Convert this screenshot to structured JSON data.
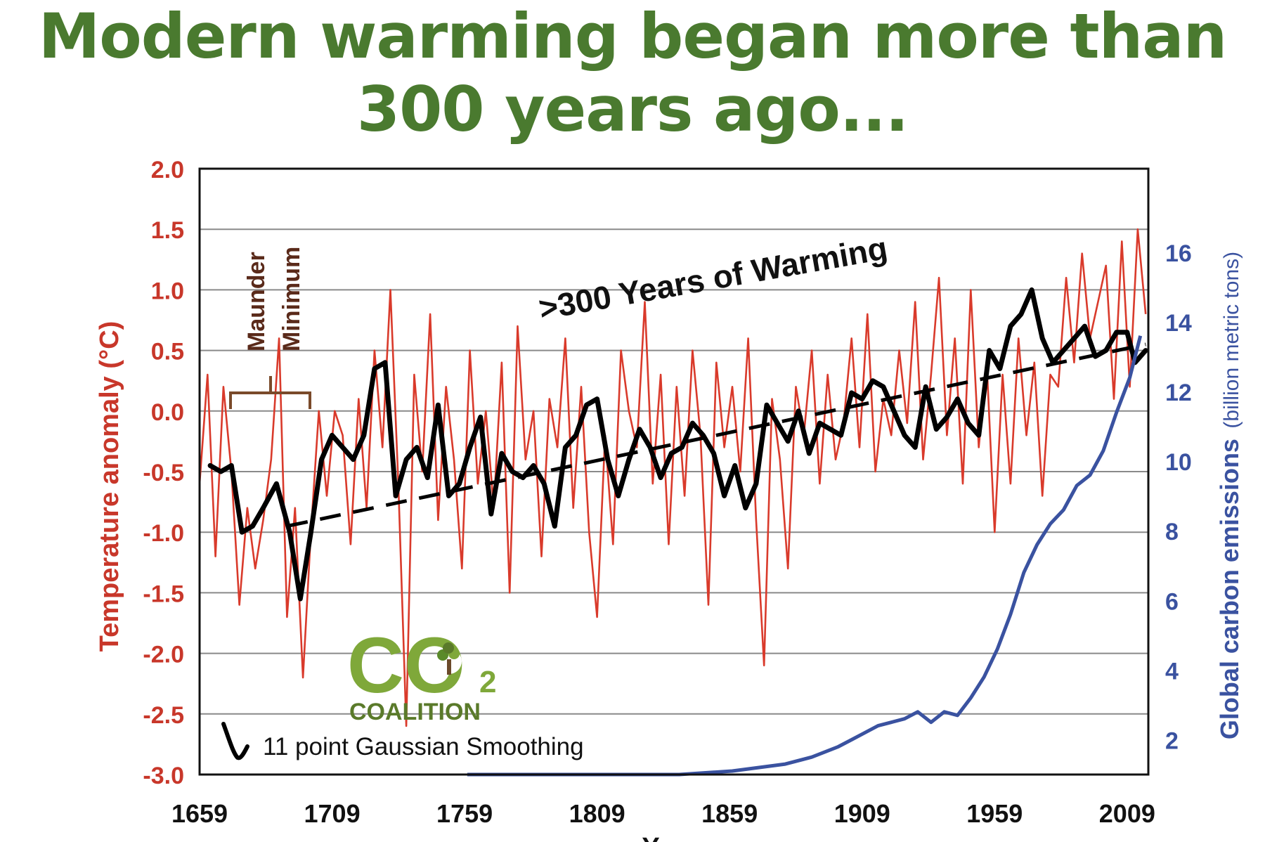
{
  "headline": {
    "line1": "Modern warming began more than",
    "line2": "300 years ago..."
  },
  "colors": {
    "headline": "#4a7a2f",
    "temperature": "#d93a2b",
    "temperature_axis": "#c8372a",
    "smoothing": "#000000",
    "emissions": "#3a52a0",
    "bracket": "#7a4a2a",
    "annotation_text": "#5a2a1a",
    "logo_green": "#7fa83a",
    "logo_dark": "#5a7a2a"
  },
  "logo": {
    "main": "CO",
    "subscript": "2",
    "word": "COALITION",
    "icon": "tree-icon"
  },
  "chart_data": {
    "type": "line",
    "title": "",
    "xlabel": "Y",
    "ylabel": "Temperature anomaly (°C)",
    "y2label_main": "Global carbon emissions",
    "y2label_unit": "(billion metric tons)",
    "xlim": [
      1659,
      2017
    ],
    "ylim": [
      -3.0,
      2.0
    ],
    "y2lim": [
      1,
      18.4
    ],
    "x_ticks": [
      "1659",
      "1709",
      "1759",
      "1809",
      "1859",
      "1909",
      "1959",
      "2009"
    ],
    "y_ticks": [
      "2.0",
      "1.5",
      "1.0",
      "0.5",
      "0.0",
      "-0.5",
      "-1.0",
      "-1.5",
      "-2.0",
      "-2.5",
      "-3.0"
    ],
    "y2_ticks": [
      "16",
      "14",
      "12",
      "10",
      "8",
      "6",
      "4",
      "2"
    ],
    "grid": true,
    "series": [
      {
        "name": "",
        "kind": "annual temperature anomaly",
        "color": "#d93a2b",
        "x": [
          1659,
          1662,
          1665,
          1668,
          1671,
          1674,
          1677,
          1680,
          1683,
          1686,
          1689,
          1692,
          1695,
          1698,
          1701,
          1704,
          1707,
          1710,
          1713,
          1716,
          1719,
          1722,
          1725,
          1728,
          1731,
          1734,
          1737,
          1740,
          1743,
          1746,
          1749,
          1752,
          1755,
          1758,
          1761,
          1764,
          1767,
          1770,
          1773,
          1776,
          1779,
          1782,
          1785,
          1788,
          1791,
          1794,
          1797,
          1800,
          1803,
          1806,
          1809,
          1812,
          1815,
          1818,
          1821,
          1824,
          1827,
          1830,
          1833,
          1836,
          1839,
          1842,
          1845,
          1848,
          1851,
          1854,
          1857,
          1860,
          1863,
          1866,
          1869,
          1872,
          1875,
          1878,
          1881,
          1884,
          1887,
          1890,
          1893,
          1896,
          1899,
          1902,
          1905,
          1908,
          1911,
          1914,
          1917,
          1920,
          1923,
          1926,
          1929,
          1932,
          1935,
          1938,
          1941,
          1944,
          1947,
          1950,
          1953,
          1956,
          1959,
          1962,
          1965,
          1968,
          1971,
          1974,
          1977,
          1980,
          1983,
          1986,
          1989,
          1992,
          1995,
          1998,
          2001,
          2004,
          2007,
          2010,
          2013,
          2016
        ],
        "y": [
          -0.6,
          0.3,
          -1.2,
          0.2,
          -0.5,
          -1.6,
          -0.8,
          -1.3,
          -0.9,
          -0.4,
          0.6,
          -1.7,
          -0.8,
          -2.2,
          -1.0,
          0.0,
          -0.7,
          0.0,
          -0.2,
          -1.1,
          0.1,
          -0.8,
          0.5,
          -0.3,
          1.0,
          -0.6,
          -2.6,
          0.3,
          -0.5,
          0.8,
          -0.9,
          0.2,
          -0.4,
          -1.3,
          0.5,
          -0.6,
          0.0,
          -0.8,
          0.4,
          -1.5,
          0.7,
          -0.4,
          0.0,
          -1.2,
          0.1,
          -0.3,
          0.6,
          -0.8,
          0.2,
          -1.0,
          -1.7,
          -0.2,
          -1.1,
          0.5,
          0.0,
          -0.3,
          0.9,
          -0.6,
          0.3,
          -1.1,
          0.2,
          -0.7,
          0.5,
          -0.2,
          -1.6,
          0.4,
          -0.3,
          0.2,
          -0.5,
          0.6,
          -0.9,
          -2.1,
          0.1,
          -0.4,
          -1.3,
          0.2,
          -0.2,
          0.5,
          -0.6,
          0.3,
          -0.4,
          -0.1,
          0.6,
          -0.3,
          0.8,
          -0.5,
          0.1,
          -0.2,
          0.5,
          -0.1,
          0.9,
          -0.4,
          0.3,
          1.1,
          -0.2,
          0.6,
          -0.6,
          1.0,
          -0.3,
          0.4,
          -1.0,
          0.3,
          -0.6,
          0.6,
          -0.2,
          0.4,
          -0.7,
          0.3,
          0.2,
          1.1,
          0.4,
          1.3,
          0.6,
          0.9,
          1.2,
          0.1,
          1.4,
          0.2,
          1.5,
          0.8
        ]
      },
      {
        "name": "11 point Gaussian Smoothing",
        "kind": "smoothed temperature",
        "color": "#000000",
        "x": [
          1663,
          1667,
          1671,
          1675,
          1679,
          1683,
          1688,
          1693,
          1697,
          1701,
          1705,
          1709,
          1713,
          1717,
          1721,
          1725,
          1729,
          1733,
          1737,
          1741,
          1745,
          1749,
          1753,
          1757,
          1761,
          1765,
          1769,
          1773,
          1777,
          1781,
          1785,
          1789,
          1793,
          1797,
          1801,
          1805,
          1809,
          1813,
          1817,
          1821,
          1825,
          1829,
          1833,
          1837,
          1841,
          1845,
          1849,
          1853,
          1857,
          1861,
          1865,
          1869,
          1873,
          1877,
          1881,
          1885,
          1889,
          1893,
          1897,
          1901,
          1905,
          1909,
          1913,
          1917,
          1921,
          1925,
          1929,
          1933,
          1937,
          1941,
          1945,
          1949,
          1953,
          1957,
          1961,
          1965,
          1969,
          1973,
          1977,
          1981,
          1985,
          1989,
          1993,
          1997,
          2001,
          2005,
          2009,
          2012,
          2016
        ],
        "y": [
          -0.45,
          -0.5,
          -0.45,
          -1.0,
          -0.95,
          -0.8,
          -0.6,
          -1.0,
          -1.55,
          -1.0,
          -0.4,
          -0.2,
          -0.3,
          -0.4,
          -0.2,
          0.35,
          0.4,
          -0.7,
          -0.4,
          -0.3,
          -0.55,
          0.05,
          -0.7,
          -0.6,
          -0.3,
          -0.05,
          -0.85,
          -0.35,
          -0.5,
          -0.55,
          -0.45,
          -0.6,
          -0.95,
          -0.3,
          -0.2,
          0.05,
          0.1,
          -0.4,
          -0.7,
          -0.4,
          -0.15,
          -0.3,
          -0.55,
          -0.35,
          -0.3,
          -0.1,
          -0.2,
          -0.35,
          -0.7,
          -0.45,
          -0.8,
          -0.6,
          0.05,
          -0.1,
          -0.25,
          0.0,
          -0.35,
          -0.1,
          -0.15,
          -0.2,
          0.15,
          0.1,
          0.25,
          0.2,
          0.0,
          -0.2,
          -0.3,
          0.2,
          -0.15,
          -0.05,
          0.1,
          -0.1,
          -0.2,
          0.5,
          0.35,
          0.7,
          0.8,
          1.0,
          0.6,
          0.4,
          0.5,
          0.6,
          0.7,
          0.45,
          0.5,
          0.65,
          0.65,
          0.4,
          0.5
        ]
      },
      {
        "name": "",
        "kind": "linear trend",
        "color": "#000000",
        "x": [
          1692,
          2016
        ],
        "y": [
          -0.95,
          0.55
        ]
      },
      {
        "name": "",
        "kind": "global carbon emissions (billion metric tons)",
        "color": "#3a52a0",
        "axis": "right",
        "x": [
          1760,
          1800,
          1840,
          1860,
          1880,
          1890,
          1900,
          1905,
          1910,
          1915,
          1920,
          1925,
          1930,
          1935,
          1940,
          1945,
          1950,
          1955,
          1960,
          1965,
          1970,
          1975,
          1980,
          1985,
          1990,
          1995,
          2000,
          2005,
          2010,
          2014
        ],
        "y": [
          1.0,
          1.0,
          1.0,
          1.1,
          1.3,
          1.5,
          1.8,
          2.0,
          2.2,
          2.4,
          2.5,
          2.6,
          2.8,
          2.5,
          2.8,
          2.7,
          3.2,
          3.8,
          4.6,
          5.6,
          6.8,
          7.6,
          8.2,
          8.6,
          9.3,
          9.6,
          10.3,
          11.4,
          12.4,
          13.6
        ]
      }
    ],
    "annotations": [
      {
        "text": ">300 Years of Warming",
        "x": 1752,
        "y": 1.05,
        "rotate": -10
      },
      {
        "text_line1": "Maunder",
        "text_line2": "Minimum",
        "x": 1680,
        "y": 0.85,
        "rotate": -90
      }
    ],
    "legend": {
      "position": "bottom-left",
      "label": "11 point Gaussian Smoothing"
    }
  }
}
